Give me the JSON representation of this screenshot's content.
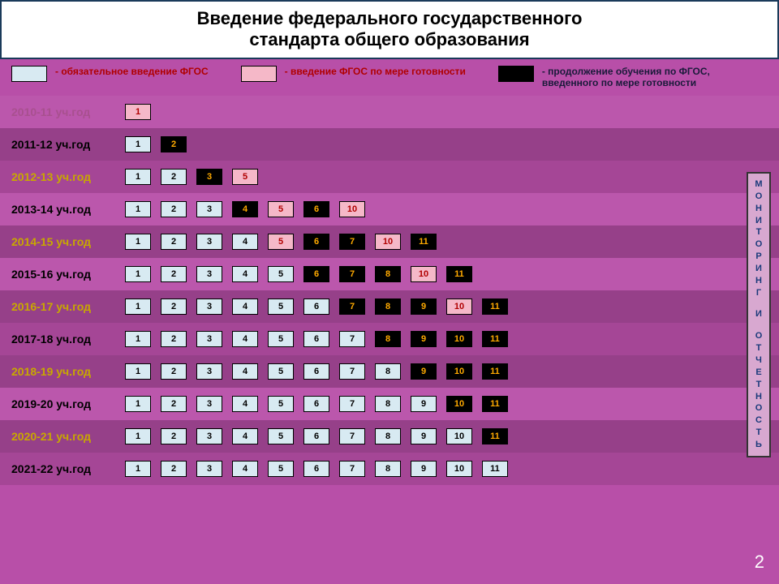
{
  "title_l1": "Введение федерального государственного",
  "title_l2": "стандарта общего образования",
  "slide_number": "2",
  "colors": {
    "mandatory_bg": "#d8eaf2",
    "mandatory_text": "#000000",
    "readiness_bg": "#f5b8c8",
    "readiness_text": "#b00000",
    "continue_bg": "#000000",
    "continue_text": "#ffaa00",
    "legend_label_red": "#b00000",
    "legend_label_dark": "#1a1a3a",
    "year_black": "#000000",
    "year_yellow": "#c8a800",
    "year_dim": "#a8508f"
  },
  "legend": [
    {
      "swatch_key": "mandatory",
      "text": "- обязательное введение ФГОС",
      "text_color_key": "legend_label_red"
    },
    {
      "swatch_key": "readiness",
      "text": "- введение ФГОС по мере готовности",
      "text_color_key": "legend_label_red"
    },
    {
      "swatch_key": "continue",
      "text": "- продолжение обучения по ФГОС, введенного по мере готовности",
      "text_color_key": "legend_label_dark"
    }
  ],
  "monitoring_label": "М О Н И Т О Р И Н Г   И   О Т Ч Е Т Н О С Т Ь",
  "rows": [
    {
      "label": "2010-11 уч.год",
      "label_color_key": "year_dim",
      "shade": "lite",
      "cells": [
        {
          "n": "1",
          "t": "readiness"
        }
      ]
    },
    {
      "label": "2011-12 уч.год",
      "label_color_key": "year_black",
      "shade": "dark",
      "cells": [
        {
          "n": "1",
          "t": "mandatory"
        },
        {
          "n": "2",
          "t": "continue"
        }
      ]
    },
    {
      "label": "2012-13 уч.год",
      "label_color_key": "year_yellow",
      "shade": "mid",
      "cells": [
        {
          "n": "1",
          "t": "mandatory"
        },
        {
          "n": "2",
          "t": "mandatory"
        },
        {
          "n": "3",
          "t": "continue"
        },
        {
          "n": "5",
          "t": "readiness"
        }
      ]
    },
    {
      "label": "2013-14 уч.год",
      "label_color_key": "year_black",
      "shade": "lite",
      "cells": [
        {
          "n": "1",
          "t": "mandatory"
        },
        {
          "n": "2",
          "t": "mandatory"
        },
        {
          "n": "3",
          "t": "mandatory"
        },
        {
          "n": "4",
          "t": "continue"
        },
        {
          "n": "5",
          "t": "readiness"
        },
        {
          "n": "6",
          "t": "continue"
        },
        {
          "n": "10",
          "t": "readiness"
        }
      ]
    },
    {
      "label": "2014-15 уч.год",
      "label_color_key": "year_yellow",
      "shade": "dark",
      "cells": [
        {
          "n": "1",
          "t": "mandatory"
        },
        {
          "n": "2",
          "t": "mandatory"
        },
        {
          "n": "3",
          "t": "mandatory"
        },
        {
          "n": "4",
          "t": "mandatory"
        },
        {
          "n": "5",
          "t": "readiness"
        },
        {
          "n": "6",
          "t": "continue"
        },
        {
          "n": "7",
          "t": "continue"
        },
        {
          "n": "10",
          "t": "readiness"
        },
        {
          "n": "11",
          "t": "continue"
        }
      ]
    },
    {
      "label": "2015-16 уч.год",
      "label_color_key": "year_black",
      "shade": "lite",
      "cells": [
        {
          "n": "1",
          "t": "mandatory"
        },
        {
          "n": "2",
          "t": "mandatory"
        },
        {
          "n": "3",
          "t": "mandatory"
        },
        {
          "n": "4",
          "t": "mandatory"
        },
        {
          "n": "5",
          "t": "mandatory"
        },
        {
          "n": "6",
          "t": "continue"
        },
        {
          "n": "7",
          "t": "continue"
        },
        {
          "n": "8",
          "t": "continue"
        },
        {
          "n": "10",
          "t": "readiness"
        },
        {
          "n": "11",
          "t": "continue"
        }
      ]
    },
    {
      "label": "2016-17 уч.год",
      "label_color_key": "year_yellow",
      "shade": "dark",
      "cells": [
        {
          "n": "1",
          "t": "mandatory"
        },
        {
          "n": "2",
          "t": "mandatory"
        },
        {
          "n": "3",
          "t": "mandatory"
        },
        {
          "n": "4",
          "t": "mandatory"
        },
        {
          "n": "5",
          "t": "mandatory"
        },
        {
          "n": "6",
          "t": "mandatory"
        },
        {
          "n": "7",
          "t": "continue"
        },
        {
          "n": "8",
          "t": "continue"
        },
        {
          "n": "9",
          "t": "continue"
        },
        {
          "n": "10",
          "t": "readiness"
        },
        {
          "n": "11",
          "t": "continue"
        }
      ]
    },
    {
      "label": "2017-18 уч.год",
      "label_color_key": "year_black",
      "shade": "mid",
      "cells": [
        {
          "n": "1",
          "t": "mandatory"
        },
        {
          "n": "2",
          "t": "mandatory"
        },
        {
          "n": "3",
          "t": "mandatory"
        },
        {
          "n": "4",
          "t": "mandatory"
        },
        {
          "n": "5",
          "t": "mandatory"
        },
        {
          "n": "6",
          "t": "mandatory"
        },
        {
          "n": "7",
          "t": "mandatory"
        },
        {
          "n": "8",
          "t": "continue"
        },
        {
          "n": "9",
          "t": "continue"
        },
        {
          "n": "10",
          "t": "continue"
        },
        {
          "n": "11",
          "t": "continue"
        }
      ]
    },
    {
      "label": "2018-19 уч.год",
      "label_color_key": "year_yellow",
      "shade": "dark",
      "cells": [
        {
          "n": "1",
          "t": "mandatory"
        },
        {
          "n": "2",
          "t": "mandatory"
        },
        {
          "n": "3",
          "t": "mandatory"
        },
        {
          "n": "4",
          "t": "mandatory"
        },
        {
          "n": "5",
          "t": "mandatory"
        },
        {
          "n": "6",
          "t": "mandatory"
        },
        {
          "n": "7",
          "t": "mandatory"
        },
        {
          "n": "8",
          "t": "mandatory"
        },
        {
          "n": "9",
          "t": "continue"
        },
        {
          "n": "10",
          "t": "continue"
        },
        {
          "n": "11",
          "t": "continue"
        }
      ]
    },
    {
      "label": "2019-20 уч.год",
      "label_color_key": "year_black",
      "shade": "lite",
      "cells": [
        {
          "n": "1",
          "t": "mandatory"
        },
        {
          "n": "2",
          "t": "mandatory"
        },
        {
          "n": "3",
          "t": "mandatory"
        },
        {
          "n": "4",
          "t": "mandatory"
        },
        {
          "n": "5",
          "t": "mandatory"
        },
        {
          "n": "6",
          "t": "mandatory"
        },
        {
          "n": "7",
          "t": "mandatory"
        },
        {
          "n": "8",
          "t": "mandatory"
        },
        {
          "n": "9",
          "t": "mandatory"
        },
        {
          "n": "10",
          "t": "continue"
        },
        {
          "n": "11",
          "t": "continue"
        }
      ]
    },
    {
      "label": "2020-21 уч.год",
      "label_color_key": "year_yellow",
      "shade": "dark",
      "cells": [
        {
          "n": "1",
          "t": "mandatory"
        },
        {
          "n": "2",
          "t": "mandatory"
        },
        {
          "n": "3",
          "t": "mandatory"
        },
        {
          "n": "4",
          "t": "mandatory"
        },
        {
          "n": "5",
          "t": "mandatory"
        },
        {
          "n": "6",
          "t": "mandatory"
        },
        {
          "n": "7",
          "t": "mandatory"
        },
        {
          "n": "8",
          "t": "mandatory"
        },
        {
          "n": "9",
          "t": "mandatory"
        },
        {
          "n": "10",
          "t": "mandatory"
        },
        {
          "n": "11",
          "t": "continue"
        }
      ]
    },
    {
      "label": "2021-22 уч.год",
      "label_color_key": "year_black",
      "shade": "mid",
      "cells": [
        {
          "n": "1",
          "t": "mandatory"
        },
        {
          "n": "2",
          "t": "mandatory"
        },
        {
          "n": "3",
          "t": "mandatory"
        },
        {
          "n": "4",
          "t": "mandatory"
        },
        {
          "n": "5",
          "t": "mandatory"
        },
        {
          "n": "6",
          "t": "mandatory"
        },
        {
          "n": "7",
          "t": "mandatory"
        },
        {
          "n": "8",
          "t": "mandatory"
        },
        {
          "n": "9",
          "t": "mandatory"
        },
        {
          "n": "10",
          "t": "mandatory"
        },
        {
          "n": "11",
          "t": "mandatory"
        }
      ]
    }
  ]
}
